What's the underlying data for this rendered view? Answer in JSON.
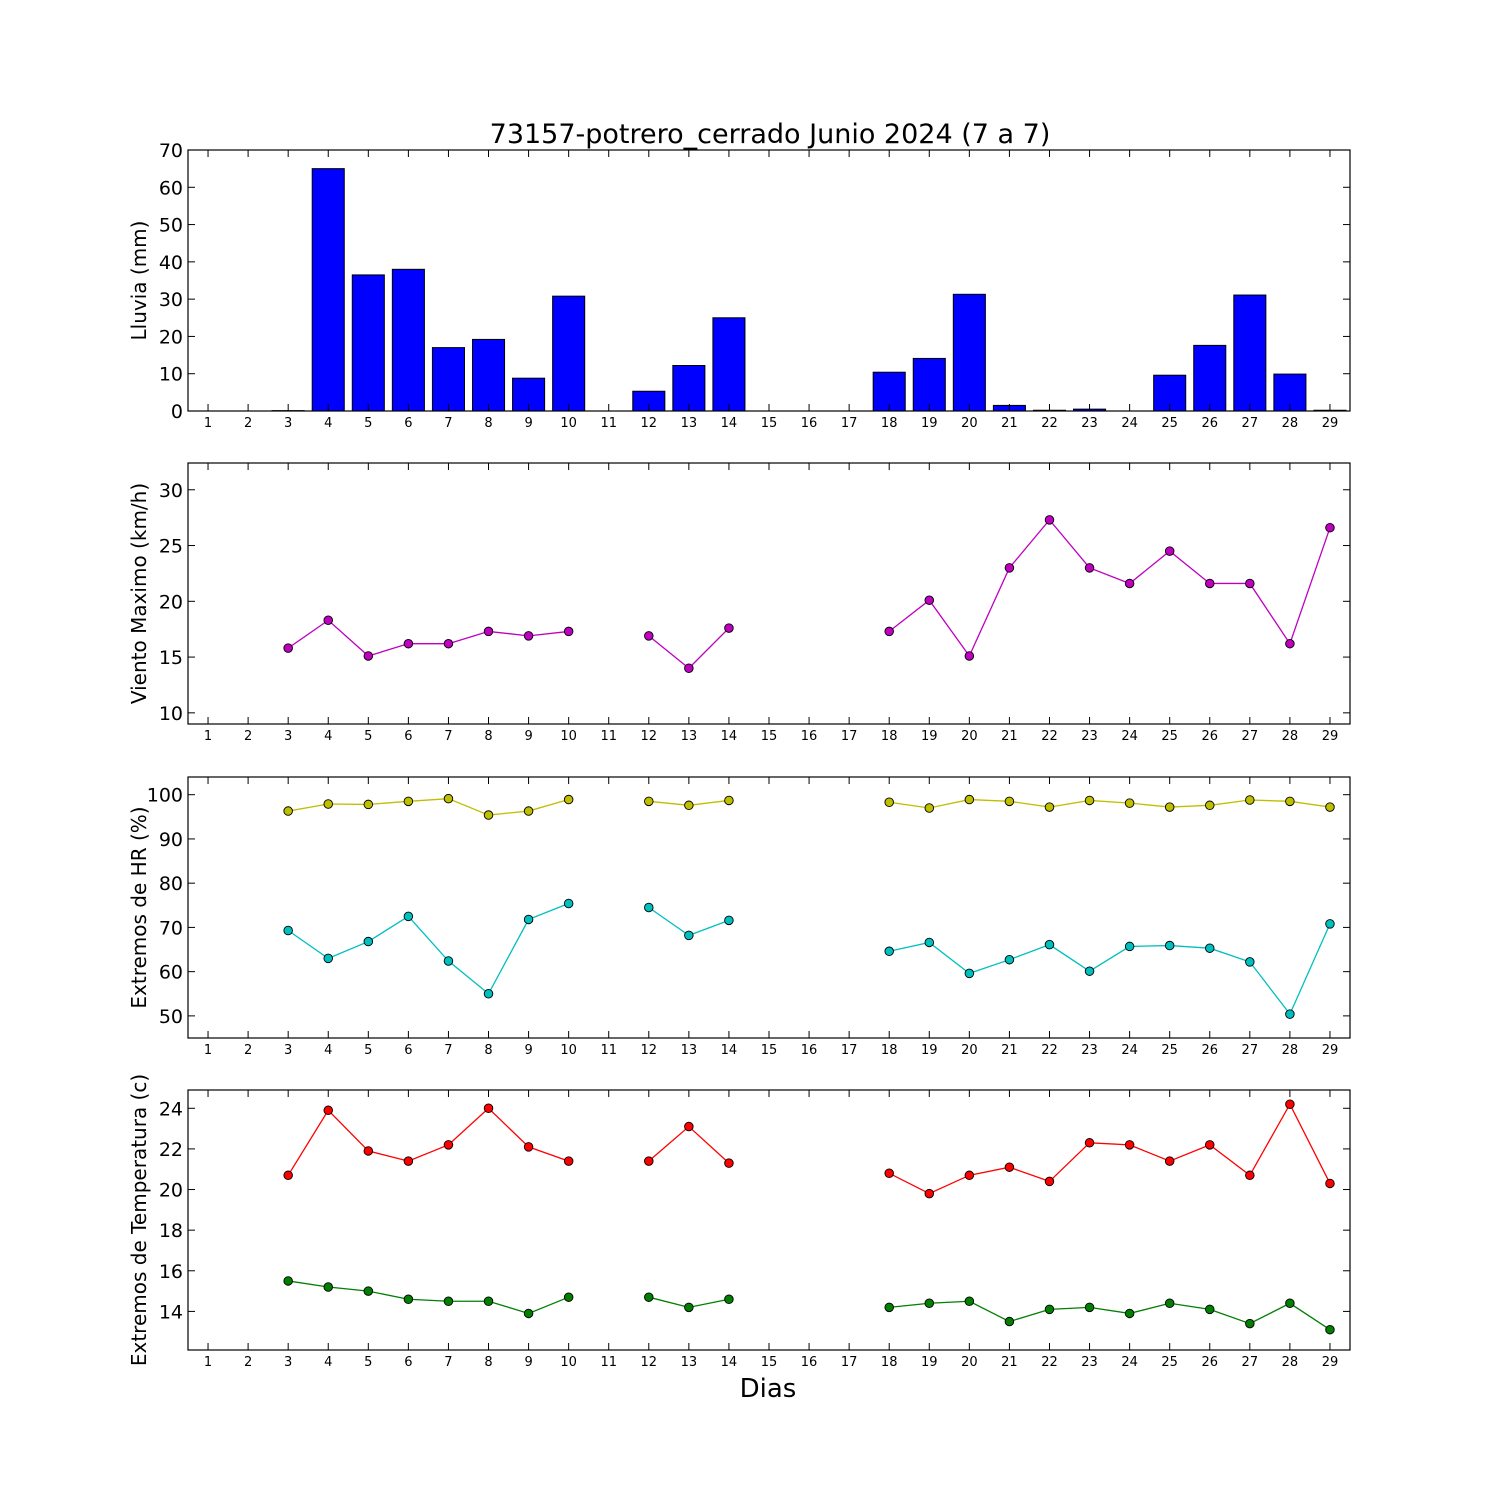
{
  "chart_data": {
    "title": "73157-potrero_cerrado Junio 2024  (7 a 7)",
    "xlabel": "Dias",
    "days": [
      1,
      2,
      3,
      4,
      5,
      6,
      7,
      8,
      9,
      10,
      11,
      12,
      13,
      14,
      15,
      16,
      17,
      18,
      19,
      20,
      21,
      22,
      23,
      24,
      25,
      26,
      27,
      28,
      29
    ],
    "panels": [
      {
        "id": "lluvia",
        "type": "bar",
        "ylabel": "Lluvia (mm)",
        "ylim": [
          0,
          70
        ],
        "yticks": [
          0,
          10,
          20,
          30,
          40,
          50,
          60,
          70
        ],
        "series": [
          {
            "color": "#0000ff",
            "values": [
              0,
              0,
              0.1,
              65,
              36.5,
              38,
              17,
              19.2,
              8.8,
              30.8,
              0,
              5.3,
              12.2,
              25,
              0,
              0,
              0,
              10.4,
              14.1,
              31.3,
              1.5,
              0.2,
              0.5,
              0,
              9.6,
              17.6,
              31.1,
              9.9,
              0.2
            ]
          }
        ]
      },
      {
        "id": "viento",
        "type": "line",
        "ylabel": "Viento Maximo (km/h)",
        "ylim": [
          9,
          32.4
        ],
        "yticks": [
          10,
          15,
          20,
          25,
          30
        ],
        "series": [
          {
            "color": "#bf00bf",
            "values": [
              null,
              null,
              15.8,
              18.3,
              15.1,
              16.2,
              16.2,
              17.3,
              16.9,
              17.3,
              null,
              16.9,
              14.0,
              17.6,
              null,
              null,
              null,
              17.3,
              20.1,
              15.1,
              23.0,
              27.3,
              23.0,
              21.6,
              24.5,
              21.6,
              21.6,
              16.2,
              26.6
            ]
          }
        ]
      },
      {
        "id": "hr",
        "type": "line",
        "ylabel": "Extremos de HR (%)",
        "ylim": [
          45,
          104
        ],
        "yticks": [
          50,
          60,
          70,
          80,
          90,
          100
        ],
        "series": [
          {
            "color": "#bfbf00",
            "values": [
              null,
              null,
              96.3,
              97.9,
              97.8,
              98.5,
              99.1,
              95.4,
              96.3,
              98.9,
              null,
              98.5,
              97.6,
              98.7,
              null,
              null,
              null,
              98.3,
              97.0,
              98.9,
              98.5,
              97.2,
              98.7,
              98.1,
              97.2,
              97.6,
              98.8,
              98.5,
              97.2
            ]
          },
          {
            "color": "#00bfbf",
            "values": [
              null,
              null,
              69.3,
              63.0,
              66.8,
              72.5,
              62.4,
              55.0,
              71.8,
              75.4,
              null,
              74.5,
              68.2,
              71.6,
              null,
              null,
              null,
              64.6,
              66.6,
              59.6,
              62.7,
              66.1,
              60.1,
              65.7,
              65.9,
              65.3,
              62.2,
              50.4,
              70.8
            ]
          }
        ]
      },
      {
        "id": "temp",
        "type": "line",
        "ylabel": "Extremos de Temperatura (c)",
        "ylim": [
          12.1,
          24.9
        ],
        "yticks": [
          14,
          16,
          18,
          20,
          22,
          24
        ],
        "series": [
          {
            "color": "#ff0000",
            "values": [
              null,
              null,
              20.7,
              23.9,
              21.9,
              21.4,
              22.2,
              24.0,
              22.1,
              21.4,
              null,
              21.4,
              23.1,
              21.3,
              null,
              null,
              null,
              20.8,
              19.8,
              20.7,
              21.1,
              20.4,
              22.3,
              22.2,
              21.4,
              22.2,
              20.7,
              24.2,
              20.3
            ]
          },
          {
            "color": "#007f00",
            "values": [
              null,
              null,
              15.5,
              15.2,
              15.0,
              14.6,
              14.5,
              14.5,
              13.9,
              14.7,
              null,
              14.7,
              14.2,
              14.6,
              null,
              null,
              null,
              14.2,
              14.4,
              14.5,
              13.5,
              14.1,
              14.2,
              13.9,
              14.4,
              14.1,
              13.4,
              14.4,
              13.1
            ]
          }
        ]
      }
    ]
  }
}
